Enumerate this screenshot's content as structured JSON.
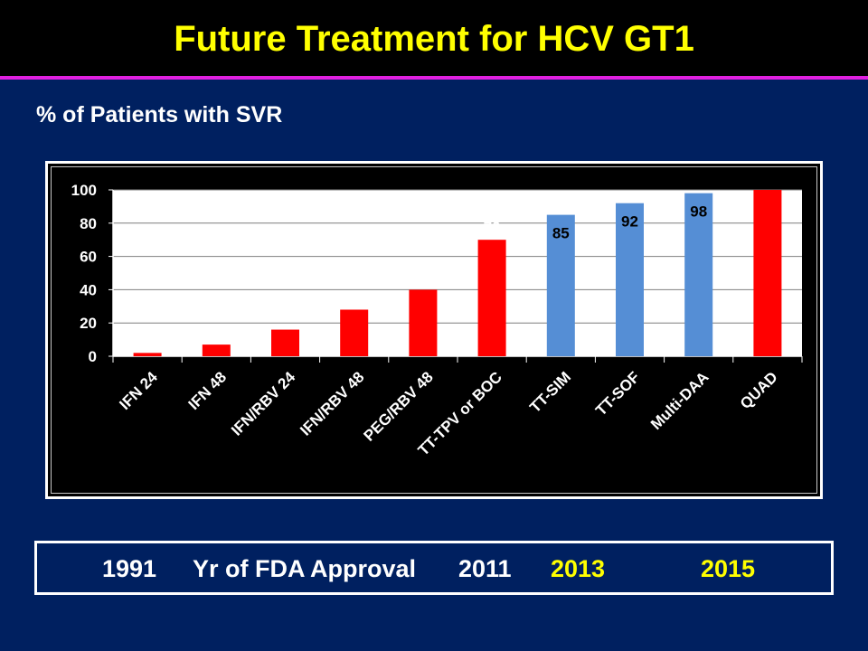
{
  "title": "Future Treatment for HCV GT1",
  "subtitle": "% of Patients with SVR",
  "approval": {
    "year_1991": "1991",
    "label": "Yr of FDA Approval",
    "year_2011": "2011",
    "year_2013": "2013",
    "year_2015": "2015"
  },
  "colors": {
    "red": "#ff0000",
    "blue": "#558ed5",
    "highlight": "#ffff00"
  },
  "chart_data": {
    "type": "bar",
    "title": "",
    "xlabel": "",
    "ylabel": "",
    "categories": [
      "IFN 24",
      "IFN 48",
      "IFN/RBV 24",
      "IFN/RBV 48",
      "PEG/RBV 48",
      "TT-TPV or BOC",
      "TT-SIM",
      "TT-SOF",
      "Multi-DAA",
      "QUAD"
    ],
    "values": [
      2,
      7,
      16,
      28,
      40,
      70,
      85,
      92,
      98,
      100
    ],
    "bar_colors": [
      "red",
      "red",
      "red",
      "red",
      "red",
      "red",
      "blue",
      "blue",
      "blue",
      "red"
    ],
    "ylim": [
      0,
      100
    ],
    "yticks": [
      0,
      20,
      40,
      60,
      80,
      100
    ],
    "grid": true,
    "legend": "none"
  }
}
